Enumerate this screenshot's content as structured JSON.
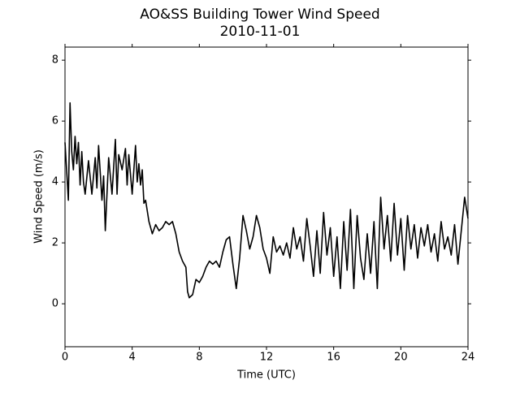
{
  "chart_data": {
    "type": "line",
    "title": "AO&SS Building Tower Wind Speed",
    "subtitle": "2010-11-01",
    "xlabel": "Time (UTC)",
    "ylabel": "Wind Speed (m/s)",
    "xlim": [
      0,
      24
    ],
    "xticks": [
      0,
      4,
      8,
      12,
      16,
      20,
      24
    ],
    "ylim": [
      -1.41,
      8.43
    ],
    "yticks": [
      0,
      2,
      4,
      6,
      8
    ],
    "grid": false,
    "series": [
      {
        "color": "#000000",
        "x": [
          0.0,
          0.2,
          0.3,
          0.4,
          0.5,
          0.6,
          0.7,
          0.8,
          0.9,
          1.0,
          1.1,
          1.2,
          1.4,
          1.6,
          1.8,
          1.9,
          2.0,
          2.2,
          2.3,
          2.4,
          2.6,
          2.8,
          3.0,
          3.1,
          3.2,
          3.4,
          3.6,
          3.7,
          3.8,
          4.0,
          4.2,
          4.3,
          4.4,
          4.5,
          4.6,
          4.7,
          4.8,
          5.0,
          5.2,
          5.4,
          5.6,
          5.8,
          6.0,
          6.2,
          6.4,
          6.6,
          6.8,
          7.0,
          7.2,
          7.3,
          7.4,
          7.6,
          7.8,
          8.0,
          8.2,
          8.4,
          8.6,
          8.8,
          9.0,
          9.2,
          9.4,
          9.6,
          9.8,
          10.0,
          10.2,
          10.4,
          10.6,
          10.8,
          11.0,
          11.2,
          11.4,
          11.6,
          11.8,
          12.0,
          12.2,
          12.4,
          12.6,
          12.8,
          13.0,
          13.2,
          13.4,
          13.6,
          13.8,
          14.0,
          14.2,
          14.4,
          14.6,
          14.8,
          15.0,
          15.2,
          15.4,
          15.6,
          15.8,
          16.0,
          16.2,
          16.4,
          16.6,
          16.8,
          17.0,
          17.2,
          17.4,
          17.6,
          17.8,
          18.0,
          18.2,
          18.4,
          18.6,
          18.8,
          19.0,
          19.2,
          19.4,
          19.6,
          19.8,
          20.0,
          20.2,
          20.4,
          20.6,
          20.8,
          21.0,
          21.2,
          21.4,
          21.6,
          21.8,
          22.0,
          22.2,
          22.4,
          22.6,
          22.8,
          23.0,
          23.2,
          23.4,
          23.6,
          23.8,
          24.0
        ],
        "values": [
          5.3,
          3.4,
          6.6,
          5.0,
          4.4,
          5.5,
          4.6,
          5.3,
          3.9,
          5.0,
          4.0,
          3.6,
          4.7,
          3.6,
          4.8,
          3.8,
          5.2,
          3.4,
          4.2,
          2.4,
          4.8,
          3.6,
          5.4,
          3.6,
          4.9,
          4.4,
          5.1,
          3.9,
          4.9,
          3.6,
          5.2,
          4.0,
          4.6,
          3.9,
          4.4,
          3.3,
          3.4,
          2.7,
          2.3,
          2.6,
          2.4,
          2.5,
          2.7,
          2.6,
          2.7,
          2.3,
          1.7,
          1.4,
          1.2,
          0.4,
          0.2,
          0.3,
          0.8,
          0.7,
          0.9,
          1.2,
          1.4,
          1.3,
          1.4,
          1.2,
          1.7,
          2.1,
          2.2,
          1.3,
          0.5,
          1.5,
          2.9,
          2.4,
          1.8,
          2.2,
          2.9,
          2.5,
          1.8,
          1.5,
          1.0,
          2.2,
          1.7,
          1.9,
          1.6,
          2.0,
          1.5,
          2.5,
          1.8,
          2.2,
          1.4,
          2.8,
          1.9,
          0.9,
          2.4,
          1.0,
          3.0,
          1.6,
          2.5,
          0.9,
          2.2,
          0.5,
          2.7,
          1.1,
          3.1,
          0.5,
          2.9,
          1.5,
          0.8,
          2.3,
          1.0,
          2.7,
          0.5,
          3.5,
          1.8,
          2.9,
          1.4,
          3.3,
          1.6,
          2.8,
          1.1,
          2.9,
          1.8,
          2.6,
          1.5,
          2.5,
          1.9,
          2.6,
          1.7,
          2.3,
          1.4,
          2.7,
          1.8,
          2.2,
          1.6,
          2.6,
          1.3,
          2.4,
          3.5,
          2.8
        ]
      }
    ]
  }
}
